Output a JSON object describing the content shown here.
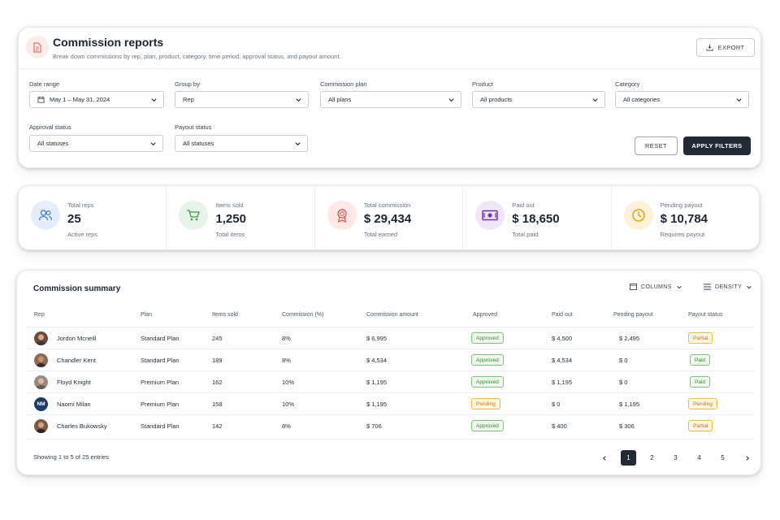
{
  "header": {
    "title": "Commission reports",
    "subtitle": "Break down commissions by rep, plan, product, category, time period, approval status, and payout amount.",
    "export_label": "EXPORT"
  },
  "filters": {
    "date_range": {
      "label": "Date range",
      "value": "May 1 – May 31, 2024"
    },
    "group_by": {
      "label": "Group by",
      "value": "Rep"
    },
    "commission_plan": {
      "label": "Commission plan",
      "value": "All plans"
    },
    "product": {
      "label": "Product",
      "value": "All products"
    },
    "category": {
      "label": "Category",
      "value": "All categories"
    },
    "approval_status": {
      "label": "Approval status",
      "value": "All statuses"
    },
    "payout_status": {
      "label": "Payout status",
      "value": "All statuses"
    },
    "reset_label": "RESET",
    "apply_label": "APPLY FILTERS"
  },
  "stats": [
    {
      "label": "Total reps",
      "value": "25",
      "sub": "Active reps",
      "icon": "users-icon",
      "color": "#3b82c4",
      "bg": "#e3eefa"
    },
    {
      "label": "Items sold",
      "value": "1,250",
      "sub": "Total items",
      "icon": "cart-icon",
      "color": "#3f9a4a",
      "bg": "#e6f4e7"
    },
    {
      "label": "Total commission",
      "value": "$ 29,434",
      "sub": "Total earned",
      "icon": "award-icon",
      "color": "#d9534f",
      "bg": "#fde8e6"
    },
    {
      "label": "Paid out",
      "value": "$ 18,650",
      "sub": "Total paid",
      "icon": "cash-icon",
      "color": "#7b4bc4",
      "bg": "#efe6fa"
    },
    {
      "label": "Pending payout",
      "value": "$ 10,784",
      "sub": "Requires payout",
      "icon": "clock-icon",
      "color": "#e0a21c",
      "bg": "#fdf2d8"
    }
  ],
  "table": {
    "title": "Commission summary",
    "columns_label": "COLUMNS",
    "density_label": "DENSITY",
    "headers": [
      "Rep",
      "Plan",
      "Items sold",
      "Commission (%)",
      "Commission amount",
      "Approved",
      "Paid out",
      "Pending payout",
      "Payout status"
    ],
    "rows": [
      {
        "rep": "Jordon Mcneill",
        "plan": "Standard Plan",
        "items": "245",
        "pct": "8%",
        "amount": "$ 6,995",
        "approved": "Approved",
        "paid": "$ 4,500",
        "pending": "$ 2,495",
        "status": "Partial",
        "avatar": "photo"
      },
      {
        "rep": "Chandler Kent",
        "plan": "Standard Plan",
        "items": "189",
        "pct": "8%",
        "amount": "$ 4,534",
        "approved": "Approved",
        "paid": "$ 4,534",
        "pending": "$ 0",
        "status": "Paid",
        "avatar": "photo"
      },
      {
        "rep": "Floyd Knight",
        "plan": "Premium Plan",
        "items": "162",
        "pct": "10%",
        "amount": "$ 1,195",
        "approved": "Approved",
        "paid": "$ 1,195",
        "pending": "$ 0",
        "status": "Paid",
        "avatar": "photo"
      },
      {
        "rep": "Naomi Milan",
        "plan": "Premium Plan",
        "items": "158",
        "pct": "10%",
        "amount": "$ 1,195",
        "approved": "Pending",
        "paid": "$ 0",
        "pending": "$ 1,195",
        "status": "Pending",
        "avatar": "NM"
      },
      {
        "rep": "Charles Bukowsky",
        "plan": "Standard Plan",
        "items": "142",
        "pct": "8%",
        "amount": "$ 706",
        "approved": "Approved",
        "paid": "$ 400",
        "pending": "$ 306",
        "status": "Partial",
        "avatar": "photo"
      }
    ],
    "footer": "Showing 1 to 5 of 25 entries",
    "pages": [
      "1",
      "2",
      "3",
      "4",
      "5"
    ],
    "current_page": "1"
  },
  "colors": {
    "primary_dark": "#222b35",
    "approved_green": "#3a8a34",
    "pending_orange": "#b7791f"
  }
}
